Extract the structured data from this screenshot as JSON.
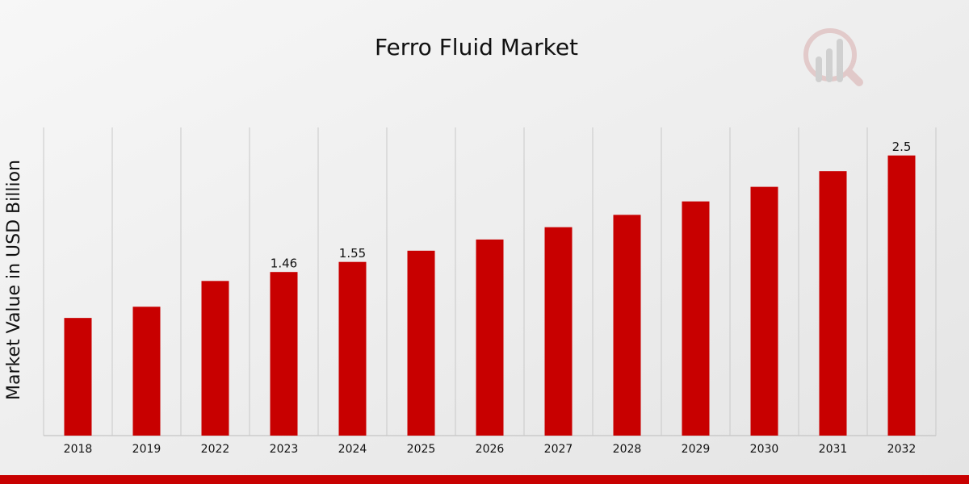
{
  "chart_data": {
    "type": "bar",
    "title": "Ferro Fluid Market",
    "y_label": "Market Value in USD Billion",
    "categories": [
      "2018",
      "2019",
      "2022",
      "2023",
      "2024",
      "2025",
      "2026",
      "2027",
      "2028",
      "2029",
      "2030",
      "2031",
      "2032"
    ],
    "values": [
      1.05,
      1.15,
      1.38,
      1.46,
      1.55,
      1.65,
      1.75,
      1.86,
      1.97,
      2.09,
      2.22,
      2.36,
      2.5
    ],
    "value_labels": [
      null,
      null,
      null,
      "1.46",
      "1.55",
      null,
      null,
      null,
      null,
      null,
      null,
      null,
      "2.5"
    ],
    "color": "#c80000",
    "ylim": [
      0,
      2.75
    ]
  }
}
